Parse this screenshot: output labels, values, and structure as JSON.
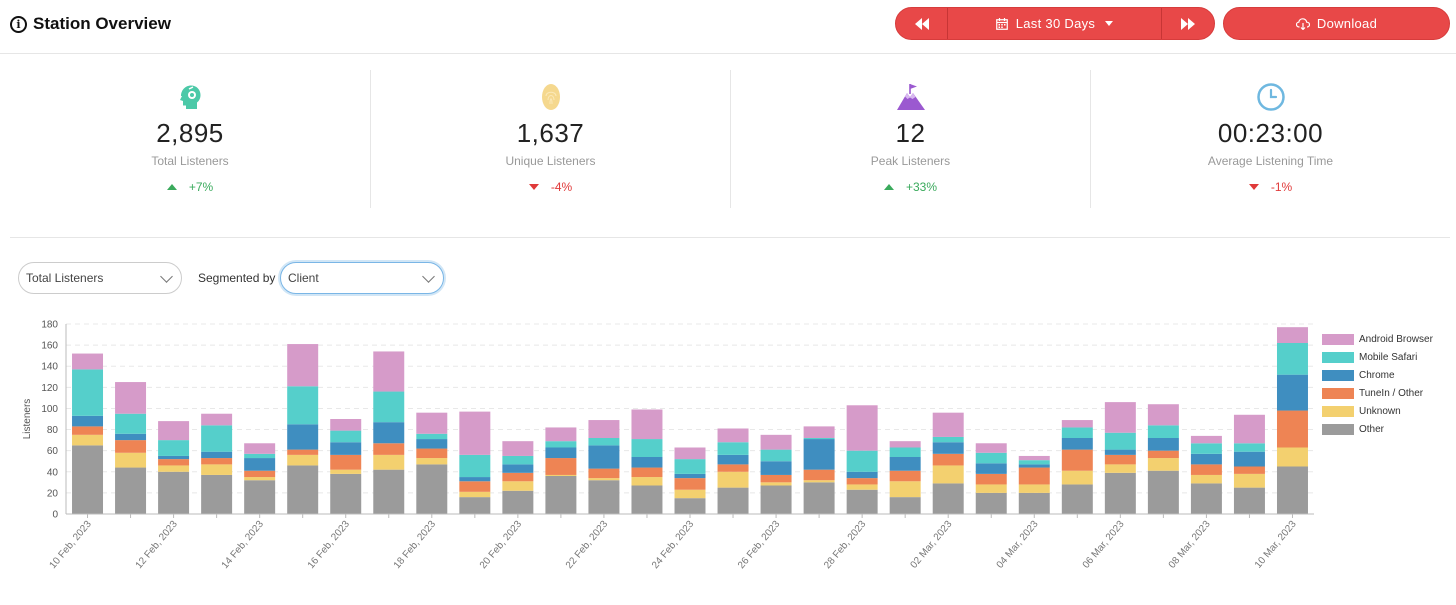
{
  "header": {
    "title": "Station Overview",
    "range_label": "Last 30 Days",
    "download_label": "Download"
  },
  "stats": [
    {
      "value": "2,895",
      "label": "Total Listeners",
      "change": "+7%",
      "direction": "up",
      "icon": "headphones-head-icon",
      "color": "#4cc9a8"
    },
    {
      "value": "1,637",
      "label": "Unique Listeners",
      "change": "-4%",
      "direction": "down",
      "icon": "fingerprint-icon",
      "color": "#f5d88e"
    },
    {
      "value": "12",
      "label": "Peak Listeners",
      "change": "+33%",
      "direction": "up",
      "icon": "mountain-flag-icon",
      "color": "#9b59d0"
    },
    {
      "value": "00:23:00",
      "label": "Average Listening Time",
      "change": "-1%",
      "direction": "down",
      "icon": "clock-icon",
      "color": "#6fb8e0"
    }
  ],
  "controls": {
    "metric_value": "Total Listeners",
    "segmented_by_label": "Segmented by",
    "segment_value": "Client"
  },
  "chart_data": {
    "type": "bar",
    "stacked": true,
    "ylabel": "Listeners",
    "ylim": [
      0,
      180
    ],
    "yticks": [
      0,
      20,
      40,
      60,
      80,
      100,
      120,
      140,
      160,
      180
    ],
    "grid": true,
    "legend_position": "right",
    "categories": [
      "10 Feb, 2023",
      "11 Feb, 2023",
      "12 Feb, 2023",
      "13 Feb, 2023",
      "14 Feb, 2023",
      "15 Feb, 2023",
      "16 Feb, 2023",
      "17 Feb, 2023",
      "18 Feb, 2023",
      "19 Feb, 2023",
      "20 Feb, 2023",
      "21 Feb, 2023",
      "22 Feb, 2023",
      "23 Feb, 2023",
      "24 Feb, 2023",
      "25 Feb, 2023",
      "26 Feb, 2023",
      "27 Feb, 2023",
      "28 Feb, 2023",
      "01 Mar, 2023",
      "02 Mar, 2023",
      "03 Mar, 2023",
      "04 Mar, 2023",
      "05 Mar, 2023",
      "06 Mar, 2023",
      "07 Mar, 2023",
      "08 Mar, 2023",
      "09 Mar, 2023",
      "10 Mar, 2023"
    ],
    "tick_labels": [
      "10 Feb, 2023",
      "",
      "12 Feb, 2023",
      "",
      "14 Feb, 2023",
      "",
      "16 Feb, 2023",
      "",
      "18 Feb, 2023",
      "",
      "20 Feb, 2023",
      "",
      "22 Feb, 2023",
      "",
      "24 Feb, 2023",
      "",
      "26 Feb, 2023",
      "",
      "28 Feb, 2023",
      "",
      "02 Mar, 2023",
      "",
      "04 Mar, 2023",
      "",
      "06 Mar, 2023",
      "",
      "08 Mar, 2023",
      "",
      "10 Mar, 2023"
    ],
    "series": [
      {
        "name": "Other",
        "color": "#9b9b9b",
        "values": [
          65,
          44,
          40,
          37,
          32,
          46,
          38,
          42,
          47,
          16,
          22,
          36,
          32,
          27,
          15,
          25,
          27,
          30,
          23,
          16,
          29,
          20,
          20,
          28,
          39,
          41,
          29,
          25,
          45
        ]
      },
      {
        "name": "Unknown",
        "color": "#f3d06f",
        "values": [
          10,
          14,
          6,
          10,
          3,
          10,
          4,
          14,
          6,
          5,
          9,
          1,
          2,
          8,
          8,
          15,
          3,
          2,
          5,
          15,
          17,
          8,
          8,
          13,
          8,
          12,
          8,
          13,
          18
        ]
      },
      {
        "name": "TuneIn / Other",
        "color": "#ee8454",
        "values": [
          8,
          12,
          6,
          6,
          6,
          5,
          14,
          11,
          9,
          10,
          8,
          16,
          9,
          9,
          11,
          7,
          7,
          10,
          6,
          10,
          11,
          10,
          16,
          20,
          9,
          7,
          10,
          7,
          35
        ]
      },
      {
        "name": "Chrome",
        "color": "#3f8ec0",
        "values": [
          10,
          6,
          3,
          6,
          12,
          24,
          12,
          20,
          9,
          4,
          8,
          10,
          22,
          10,
          4,
          9,
          13,
          29,
          6,
          13,
          11,
          10,
          3,
          11,
          5,
          12,
          10,
          14,
          34
        ]
      },
      {
        "name": "Mobile Safari",
        "color": "#55cfcb",
        "values": [
          44,
          19,
          15,
          25,
          4,
          36,
          11,
          29,
          5,
          21,
          8,
          6,
          7,
          17,
          14,
          12,
          11,
          1,
          20,
          9,
          5,
          10,
          4,
          10,
          16,
          12,
          10,
          8,
          30
        ]
      },
      {
        "name": "Android Browser",
        "color": "#d69bc9",
        "values": [
          15,
          30,
          18,
          11,
          10,
          40,
          11,
          38,
          20,
          41,
          14,
          13,
          17,
          28,
          11,
          13,
          14,
          11,
          43,
          6,
          23,
          9,
          4,
          7,
          29,
          20,
          7,
          27,
          15
        ]
      }
    ]
  }
}
